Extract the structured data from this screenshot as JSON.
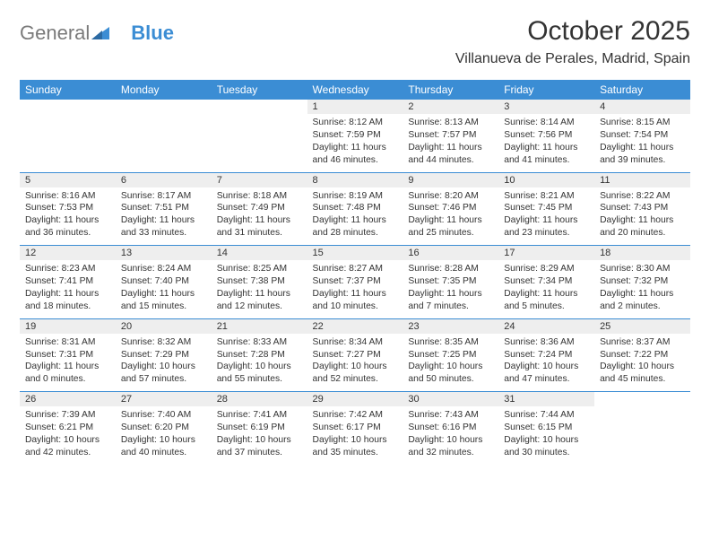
{
  "logo": {
    "text1": "General",
    "text2": "Blue"
  },
  "title": "October 2025",
  "location": "Villanueva de Perales, Madrid, Spain",
  "colors": {
    "accent": "#3b8dd4",
    "header_text": "#ffffff",
    "daynum_bg": "#eeeeee",
    "text": "#333333",
    "logo_gray": "#7a7a7a"
  },
  "fonts": {
    "title_size": 30,
    "location_size": 16,
    "dayhead_size": 12,
    "daynum_size": 11,
    "body_size": 10.3
  },
  "day_headers": [
    "Sunday",
    "Monday",
    "Tuesday",
    "Wednesday",
    "Thursday",
    "Friday",
    "Saturday"
  ],
  "weeks": [
    [
      {
        "n": "",
        "sr": "",
        "ss": "",
        "dl": ""
      },
      {
        "n": "",
        "sr": "",
        "ss": "",
        "dl": ""
      },
      {
        "n": "",
        "sr": "",
        "ss": "",
        "dl": ""
      },
      {
        "n": "1",
        "sr": "Sunrise: 8:12 AM",
        "ss": "Sunset: 7:59 PM",
        "dl": "Daylight: 11 hours and 46 minutes."
      },
      {
        "n": "2",
        "sr": "Sunrise: 8:13 AM",
        "ss": "Sunset: 7:57 PM",
        "dl": "Daylight: 11 hours and 44 minutes."
      },
      {
        "n": "3",
        "sr": "Sunrise: 8:14 AM",
        "ss": "Sunset: 7:56 PM",
        "dl": "Daylight: 11 hours and 41 minutes."
      },
      {
        "n": "4",
        "sr": "Sunrise: 8:15 AM",
        "ss": "Sunset: 7:54 PM",
        "dl": "Daylight: 11 hours and 39 minutes."
      }
    ],
    [
      {
        "n": "5",
        "sr": "Sunrise: 8:16 AM",
        "ss": "Sunset: 7:53 PM",
        "dl": "Daylight: 11 hours and 36 minutes."
      },
      {
        "n": "6",
        "sr": "Sunrise: 8:17 AM",
        "ss": "Sunset: 7:51 PM",
        "dl": "Daylight: 11 hours and 33 minutes."
      },
      {
        "n": "7",
        "sr": "Sunrise: 8:18 AM",
        "ss": "Sunset: 7:49 PM",
        "dl": "Daylight: 11 hours and 31 minutes."
      },
      {
        "n": "8",
        "sr": "Sunrise: 8:19 AM",
        "ss": "Sunset: 7:48 PM",
        "dl": "Daylight: 11 hours and 28 minutes."
      },
      {
        "n": "9",
        "sr": "Sunrise: 8:20 AM",
        "ss": "Sunset: 7:46 PM",
        "dl": "Daylight: 11 hours and 25 minutes."
      },
      {
        "n": "10",
        "sr": "Sunrise: 8:21 AM",
        "ss": "Sunset: 7:45 PM",
        "dl": "Daylight: 11 hours and 23 minutes."
      },
      {
        "n": "11",
        "sr": "Sunrise: 8:22 AM",
        "ss": "Sunset: 7:43 PM",
        "dl": "Daylight: 11 hours and 20 minutes."
      }
    ],
    [
      {
        "n": "12",
        "sr": "Sunrise: 8:23 AM",
        "ss": "Sunset: 7:41 PM",
        "dl": "Daylight: 11 hours and 18 minutes."
      },
      {
        "n": "13",
        "sr": "Sunrise: 8:24 AM",
        "ss": "Sunset: 7:40 PM",
        "dl": "Daylight: 11 hours and 15 minutes."
      },
      {
        "n": "14",
        "sr": "Sunrise: 8:25 AM",
        "ss": "Sunset: 7:38 PM",
        "dl": "Daylight: 11 hours and 12 minutes."
      },
      {
        "n": "15",
        "sr": "Sunrise: 8:27 AM",
        "ss": "Sunset: 7:37 PM",
        "dl": "Daylight: 11 hours and 10 minutes."
      },
      {
        "n": "16",
        "sr": "Sunrise: 8:28 AM",
        "ss": "Sunset: 7:35 PM",
        "dl": "Daylight: 11 hours and 7 minutes."
      },
      {
        "n": "17",
        "sr": "Sunrise: 8:29 AM",
        "ss": "Sunset: 7:34 PM",
        "dl": "Daylight: 11 hours and 5 minutes."
      },
      {
        "n": "18",
        "sr": "Sunrise: 8:30 AM",
        "ss": "Sunset: 7:32 PM",
        "dl": "Daylight: 11 hours and 2 minutes."
      }
    ],
    [
      {
        "n": "19",
        "sr": "Sunrise: 8:31 AM",
        "ss": "Sunset: 7:31 PM",
        "dl": "Daylight: 11 hours and 0 minutes."
      },
      {
        "n": "20",
        "sr": "Sunrise: 8:32 AM",
        "ss": "Sunset: 7:29 PM",
        "dl": "Daylight: 10 hours and 57 minutes."
      },
      {
        "n": "21",
        "sr": "Sunrise: 8:33 AM",
        "ss": "Sunset: 7:28 PM",
        "dl": "Daylight: 10 hours and 55 minutes."
      },
      {
        "n": "22",
        "sr": "Sunrise: 8:34 AM",
        "ss": "Sunset: 7:27 PM",
        "dl": "Daylight: 10 hours and 52 minutes."
      },
      {
        "n": "23",
        "sr": "Sunrise: 8:35 AM",
        "ss": "Sunset: 7:25 PM",
        "dl": "Daylight: 10 hours and 50 minutes."
      },
      {
        "n": "24",
        "sr": "Sunrise: 8:36 AM",
        "ss": "Sunset: 7:24 PM",
        "dl": "Daylight: 10 hours and 47 minutes."
      },
      {
        "n": "25",
        "sr": "Sunrise: 8:37 AM",
        "ss": "Sunset: 7:22 PM",
        "dl": "Daylight: 10 hours and 45 minutes."
      }
    ],
    [
      {
        "n": "26",
        "sr": "Sunrise: 7:39 AM",
        "ss": "Sunset: 6:21 PM",
        "dl": "Daylight: 10 hours and 42 minutes."
      },
      {
        "n": "27",
        "sr": "Sunrise: 7:40 AM",
        "ss": "Sunset: 6:20 PM",
        "dl": "Daylight: 10 hours and 40 minutes."
      },
      {
        "n": "28",
        "sr": "Sunrise: 7:41 AM",
        "ss": "Sunset: 6:19 PM",
        "dl": "Daylight: 10 hours and 37 minutes."
      },
      {
        "n": "29",
        "sr": "Sunrise: 7:42 AM",
        "ss": "Sunset: 6:17 PM",
        "dl": "Daylight: 10 hours and 35 minutes."
      },
      {
        "n": "30",
        "sr": "Sunrise: 7:43 AM",
        "ss": "Sunset: 6:16 PM",
        "dl": "Daylight: 10 hours and 32 minutes."
      },
      {
        "n": "31",
        "sr": "Sunrise: 7:44 AM",
        "ss": "Sunset: 6:15 PM",
        "dl": "Daylight: 10 hours and 30 minutes."
      },
      {
        "n": "",
        "sr": "",
        "ss": "",
        "dl": ""
      }
    ]
  ]
}
